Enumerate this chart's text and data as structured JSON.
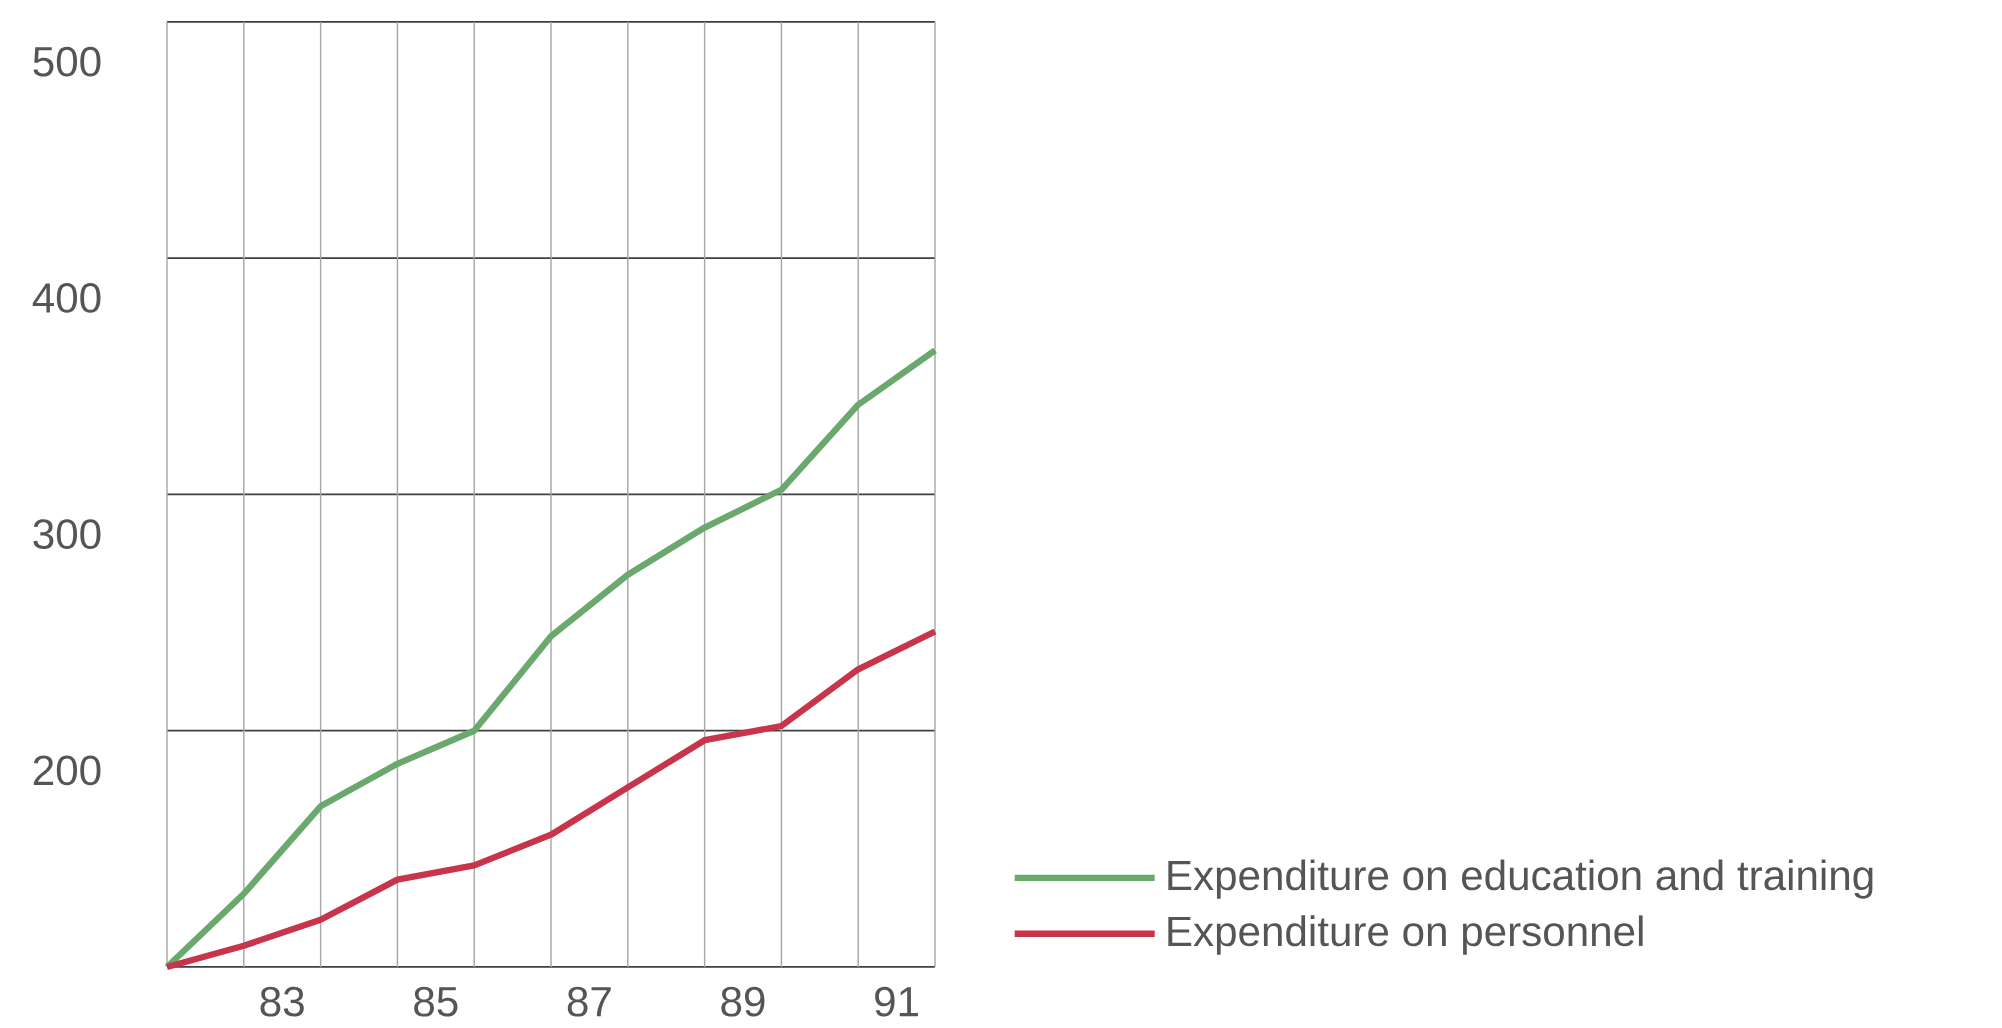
{
  "chart_data": {
    "type": "line",
    "x": [
      81.5,
      82.5,
      83.5,
      84.5,
      85.5,
      86.5,
      87.5,
      88.5,
      89.5,
      90.5,
      91.5
    ],
    "series": [
      {
        "name": "Expenditure on education and training",
        "color": "#6aa86e",
        "values": [
          100,
          131,
          168,
          186,
          200,
          240,
          266,
          286,
          302,
          338,
          361
        ]
      },
      {
        "name": "Expenditure on personnel",
        "color": "#c8344a",
        "values": [
          100,
          109,
          120,
          137,
          143,
          156,
          176,
          196,
          202,
          226,
          242
        ]
      }
    ],
    "xlim": [
      81.5,
      91.5
    ],
    "xticks": [
      83,
      85,
      87,
      89,
      91,
      {
        "value": 81.5,
        "label": null
      },
      {
        "value": 82.5,
        "label": null
      },
      {
        "value": 83.5,
        "label": null
      },
      {
        "value": 84.5,
        "label": null
      },
      {
        "value": 85.5,
        "label": null
      },
      {
        "value": 86.5,
        "label": null
      },
      {
        "value": 87.5,
        "label": null
      },
      {
        "value": 88.5,
        "label": null
      },
      {
        "value": 89.5,
        "label": null
      },
      {
        "value": 90.5,
        "label": null
      },
      {
        "value": 91.5,
        "label": null
      }
    ],
    "ylim": [
      100,
      500
    ],
    "yticks": [
      {
        "value": 100,
        "label": null
      },
      200,
      300,
      400,
      500
    ],
    "grid": true,
    "legend": "bottom right",
    "line_style": "solid",
    "marker": "none"
  }
}
